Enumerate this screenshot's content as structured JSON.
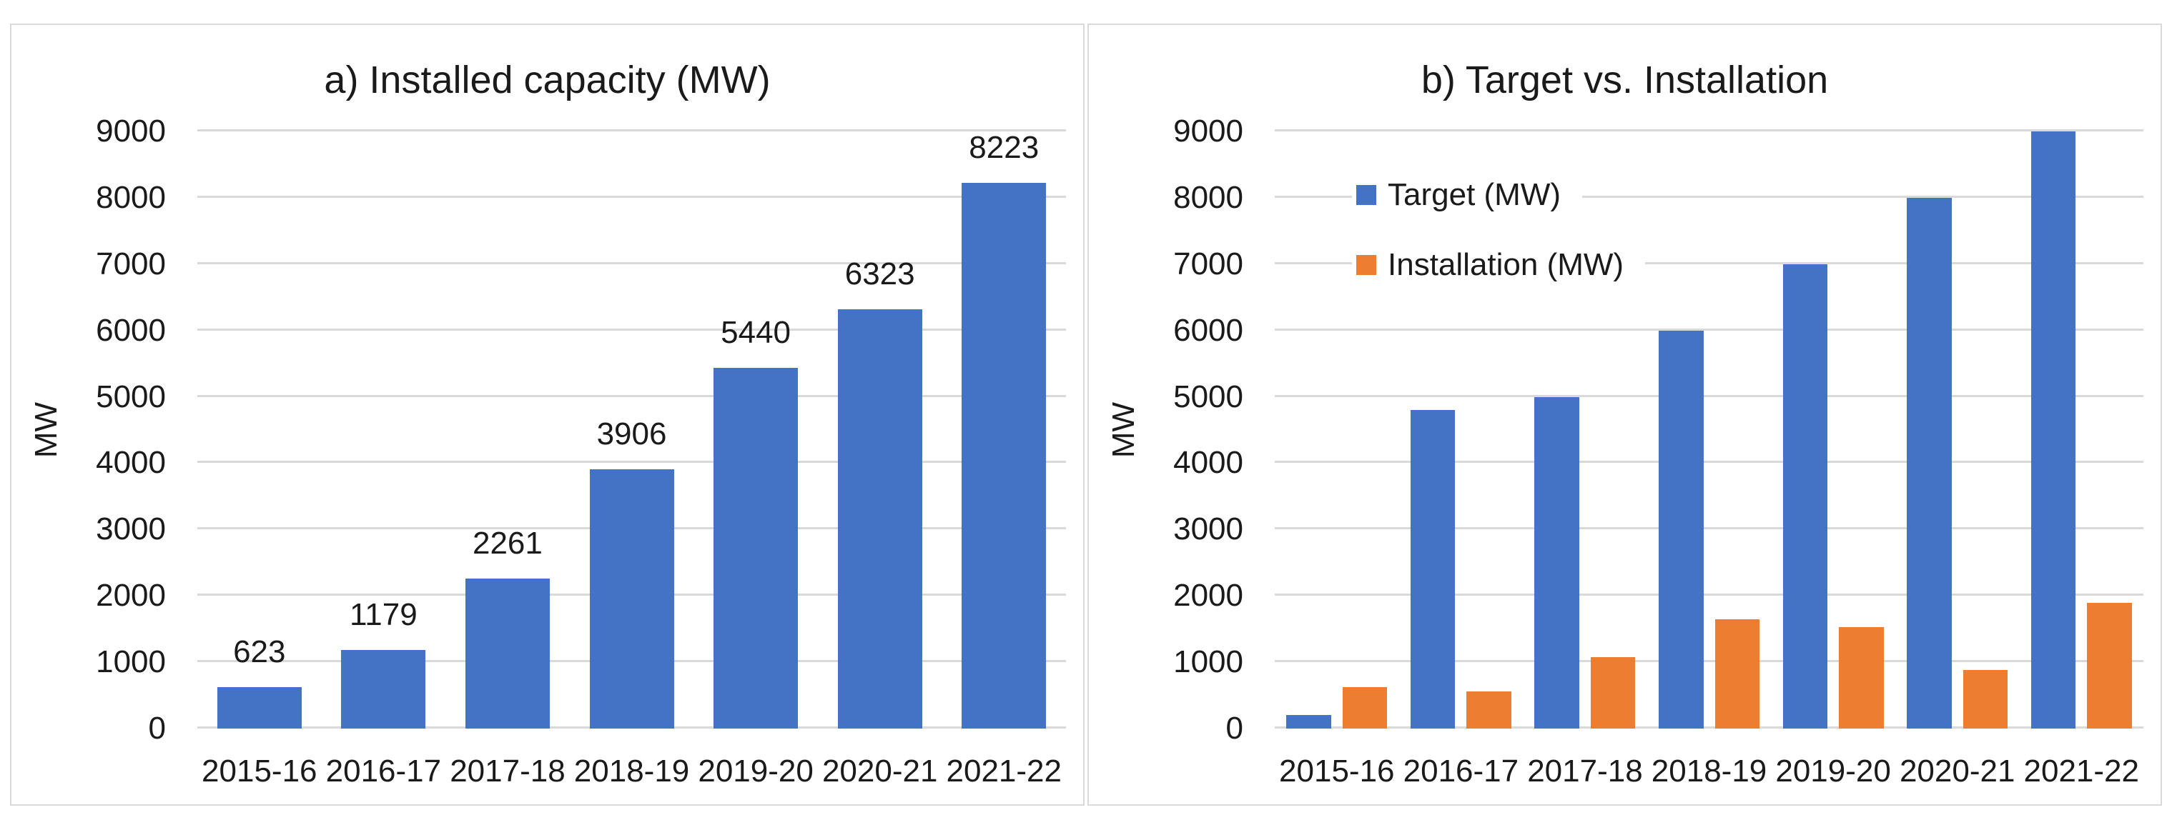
{
  "figure": {
    "background": "#ffffff",
    "panel_border_color": "#d9d9d9",
    "grid_color": "#d9d9d9",
    "text_color": "#1a1a1a"
  },
  "chart_data": [
    {
      "type": "bar",
      "title": "a) Installed capacity (MW)",
      "xlabel": "",
      "ylabel": "MW",
      "categories": [
        "2015-16",
        "2016-17",
        "2017-18",
        "2018-19",
        "2019-20",
        "2020-21",
        "2021-22"
      ],
      "series": [
        {
          "color": "#4472C4",
          "values": [
            623,
            1179,
            2261,
            3906,
            5440,
            6323,
            8223
          ],
          "data_labels": true
        }
      ],
      "ylim": [
        0,
        9000
      ],
      "ytick_step": 1000,
      "grid": true,
      "legend": false
    },
    {
      "type": "bar",
      "title": "b) Target vs. Installation",
      "xlabel": "",
      "ylabel": "MW",
      "categories": [
        "2015-16",
        "2016-17",
        "2017-18",
        "2018-19",
        "2019-20",
        "2020-21",
        "2021-22"
      ],
      "series": [
        {
          "name": "Target (MW)",
          "color": "#4472C4",
          "values": [
            200,
            4800,
            5000,
            6000,
            7000,
            8000,
            9000
          ],
          "data_labels": false
        },
        {
          "name": "Installation (MW)",
          "color": "#ED7D31",
          "values": [
            623,
            556,
            1082,
            1645,
            1534,
            883,
            1900
          ],
          "data_labels": false
        }
      ],
      "ylim": [
        0,
        9000
      ],
      "ytick_step": 1000,
      "grid": true,
      "legend": true,
      "legend_position": "inside-top-left"
    }
  ]
}
